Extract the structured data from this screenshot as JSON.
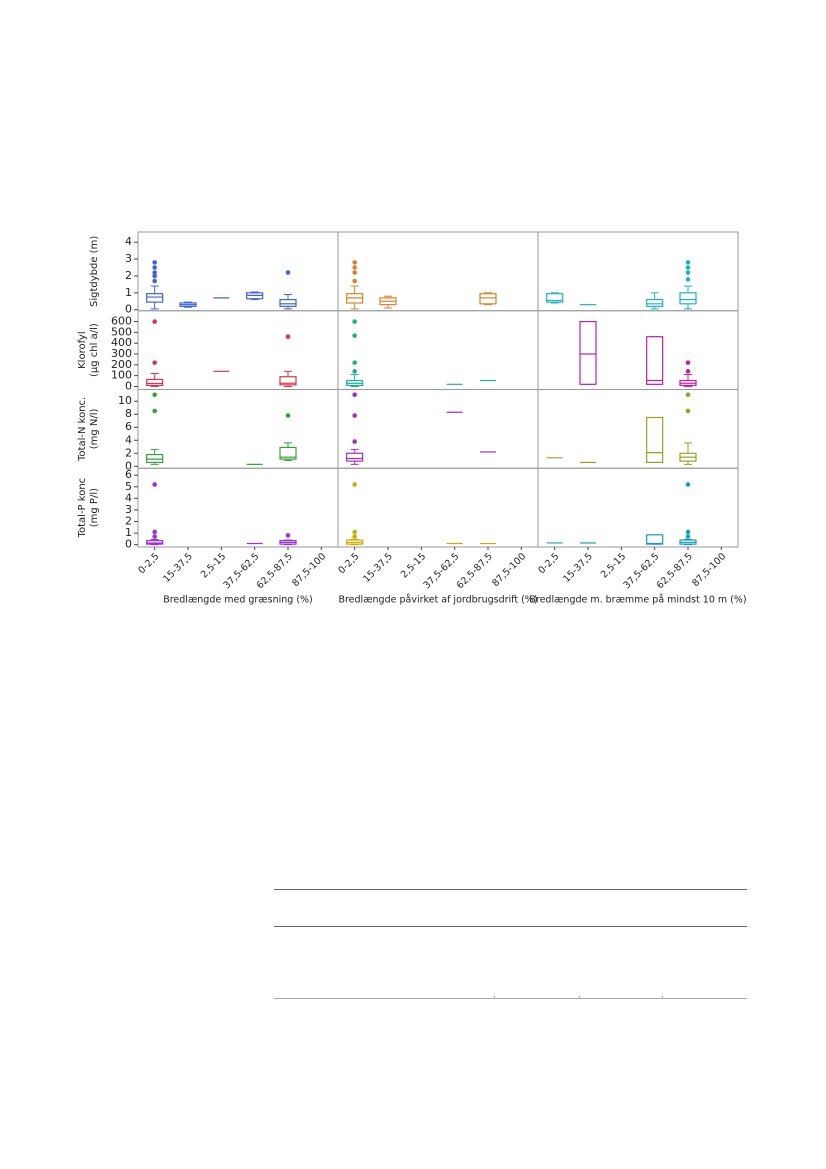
{
  "chart_data": {
    "type": "box",
    "categories": [
      "0-2,5",
      "15-37,5",
      "2,5-15",
      "37,5-62,5",
      "62,5-87,5",
      "87,5-100"
    ],
    "facets": [
      "Bredlængde med græsning (%)",
      "Bredlængde påvirket af jordbrugsdrift (%)",
      "Bredlængde m. bræmme på mindst 10 m (%)"
    ],
    "rows": [
      {
        "label": [
          "Sigtdybde (m)"
        ],
        "ylim": [
          -0.06,
          4.6
        ],
        "yticks": [
          0,
          1,
          2,
          3,
          4
        ],
        "panels": [
          {
            "color": "#3f64d8",
            "boxes": [
              {
                "min": 0.05,
                "q1": 0.45,
                "median": 0.75,
                "q3": 0.95,
                "max": 1.4,
                "outliers": [
                  2.8,
                  2.5,
                  2.2,
                  2.0,
                  1.7
                ]
              },
              {
                "min": 0.15,
                "q1": 0.2,
                "median": 0.3,
                "q3": 0.4,
                "max": 0.45,
                "outliers": []
              },
              {
                "value": 0.7
              },
              {
                "min": 0.6,
                "q1": 0.65,
                "median": 0.85,
                "q3": 1.0,
                "max": 1.05,
                "outliers": []
              },
              {
                "min": 0.05,
                "q1": 0.2,
                "median": 0.35,
                "q3": 0.6,
                "max": 0.9,
                "outliers": [
                  2.2
                ]
              },
              null
            ]
          },
          {
            "color": "#d9822b",
            "boxes": [
              {
                "min": 0.05,
                "q1": 0.4,
                "median": 0.7,
                "q3": 0.95,
                "max": 1.4,
                "outliers": [
                  2.8,
                  2.5,
                  2.2,
                  1.7
                ]
              },
              {
                "min": 0.1,
                "q1": 0.3,
                "median": 0.5,
                "q3": 0.7,
                "max": 0.8,
                "outliers": []
              },
              null,
              null,
              {
                "min": 0.3,
                "q1": 0.35,
                "median": 0.7,
                "q3": 0.95,
                "max": 1.0,
                "outliers": []
              },
              null
            ]
          },
          {
            "color": "#1fb3c0",
            "boxes": [
              {
                "min": 0.4,
                "q1": 0.45,
                "median": 0.55,
                "q3": 0.95,
                "max": 1.0,
                "outliers": []
              },
              {
                "value": 0.3
              },
              null,
              {
                "min": 0.05,
                "q1": 0.2,
                "median": 0.35,
                "q3": 0.6,
                "max": 1.0,
                "outliers": []
              },
              {
                "min": 0.05,
                "q1": 0.35,
                "median": 0.6,
                "q3": 1.0,
                "max": 1.4,
                "outliers": [
                  2.8,
                  2.5,
                  2.2,
                  1.8
                ]
              },
              null
            ]
          }
        ]
      },
      {
        "label": [
          "Klorofyl",
          "(µg chl a/l)"
        ],
        "ylim": [
          -28,
          700
        ],
        "yticks": [
          0,
          100,
          200,
          300,
          400,
          500,
          600
        ],
        "panels": [
          {
            "color": "#e0304a",
            "boxes": [
              {
                "min": 0,
                "q1": 10,
                "median": 28,
                "q3": 65,
                "max": 120,
                "outliers": [
                  600,
                  220
                ]
              },
              null,
              {
                "value": 140
              },
              null,
              {
                "min": 0,
                "q1": 15,
                "median": 30,
                "q3": 90,
                "max": 140,
                "outliers": [
                  460
                ]
              },
              null
            ]
          },
          {
            "color": "#1fae8e",
            "boxes": [
              {
                "min": 0,
                "q1": 10,
                "median": 30,
                "q3": 55,
                "max": 110,
                "outliers": [
                  600,
                  470,
                  220,
                  140
                ]
              },
              null,
              null,
              {
                "value": 20
              },
              {
                "value": 55
              },
              null
            ]
          },
          {
            "color": "#c0209e",
            "boxes": [
              null,
              {
                "min": 20,
                "q1": 20,
                "median": 300,
                "q3": 600,
                "max": 600,
                "outliers": []
              },
              null,
              {
                "min": 20,
                "q1": 20,
                "median": 55,
                "q3": 460,
                "max": 460,
                "outliers": []
              },
              {
                "min": 0,
                "q1": 10,
                "median": 30,
                "q3": 55,
                "max": 110,
                "outliers": [
                  220,
                  140
                ]
              },
              null
            ]
          }
        ]
      },
      {
        "label": [
          "Total-N konc.",
          "(mg N/l)"
        ],
        "ylim": [
          -0.3,
          11.8
        ],
        "yticks": [
          0,
          2,
          4,
          6,
          8,
          10
        ],
        "panels": [
          {
            "color": "#3aa03a",
            "boxes": [
              {
                "min": 0.3,
                "q1": 0.6,
                "median": 1.1,
                "q3": 1.8,
                "max": 2.6,
                "outliers": [
                  11,
                  8.5
                ]
              },
              null,
              null,
              {
                "value": 0.3
              },
              {
                "min": 0.9,
                "q1": 1.1,
                "median": 1.4,
                "q3": 2.9,
                "max": 3.6,
                "outliers": [
                  7.8
                ]
              },
              null
            ]
          },
          {
            "color": "#a030c0",
            "boxes": [
              {
                "min": 0.3,
                "q1": 0.8,
                "median": 1.2,
                "q3": 2.0,
                "max": 2.6,
                "outliers": [
                  11,
                  7.8,
                  3.8
                ]
              },
              null,
              null,
              {
                "value": 8.3
              },
              {
                "value": 2.2
              },
              null
            ]
          },
          {
            "color": "#a0a020",
            "boxes": [
              {
                "value": 1.3
              },
              {
                "value": 0.6
              },
              null,
              {
                "min": 0.6,
                "q1": 0.6,
                "median": 2.1,
                "q3": 7.5,
                "max": 7.5,
                "outliers": []
              },
              {
                "min": 0.3,
                "q1": 0.8,
                "median": 1.4,
                "q3": 2.0,
                "max": 3.6,
                "outliers": [
                  11,
                  8.5
                ]
              },
              null
            ]
          }
        ]
      },
      {
        "label": [
          "Total-P konc",
          "(mg P/l)"
        ],
        "ylim": [
          -0.2,
          6.6
        ],
        "yticks": [
          0,
          1,
          2,
          3,
          4,
          5,
          6
        ],
        "panels": [
          {
            "color": "#9a30e0",
            "boxes": [
              {
                "min": 0,
                "q1": 0.05,
                "median": 0.15,
                "q3": 0.35,
                "max": 0.45,
                "outliers": [
                  5.2,
                  1.1,
                  0.7
                ]
              },
              null,
              null,
              {
                "value": 0.1
              },
              {
                "min": 0,
                "q1": 0.05,
                "median": 0.2,
                "q3": 0.35,
                "max": 0.4,
                "outliers": [
                  0.8
                ]
              },
              null
            ]
          },
          {
            "color": "#c8b000",
            "boxes": [
              {
                "min": 0,
                "q1": 0.05,
                "median": 0.2,
                "q3": 0.4,
                "max": 0.45,
                "outliers": [
                  5.2,
                  1.1,
                  0.7
                ]
              },
              null,
              null,
              {
                "value": 0.1
              },
              {
                "value": 0.1
              },
              null
            ]
          },
          {
            "color": "#1a9cc0",
            "boxes": [
              {
                "value": 0.15
              },
              {
                "value": 0.15
              },
              null,
              {
                "min": 0.05,
                "q1": 0.05,
                "median": 0.1,
                "q3": 0.85,
                "max": 0.85,
                "outliers": []
              },
              {
                "min": 0,
                "q1": 0.05,
                "median": 0.2,
                "q3": 0.4,
                "max": 0.45,
                "outliers": [
                  5.2,
                  1.1,
                  0.7
                ]
              },
              null
            ]
          }
        ]
      }
    ]
  }
}
